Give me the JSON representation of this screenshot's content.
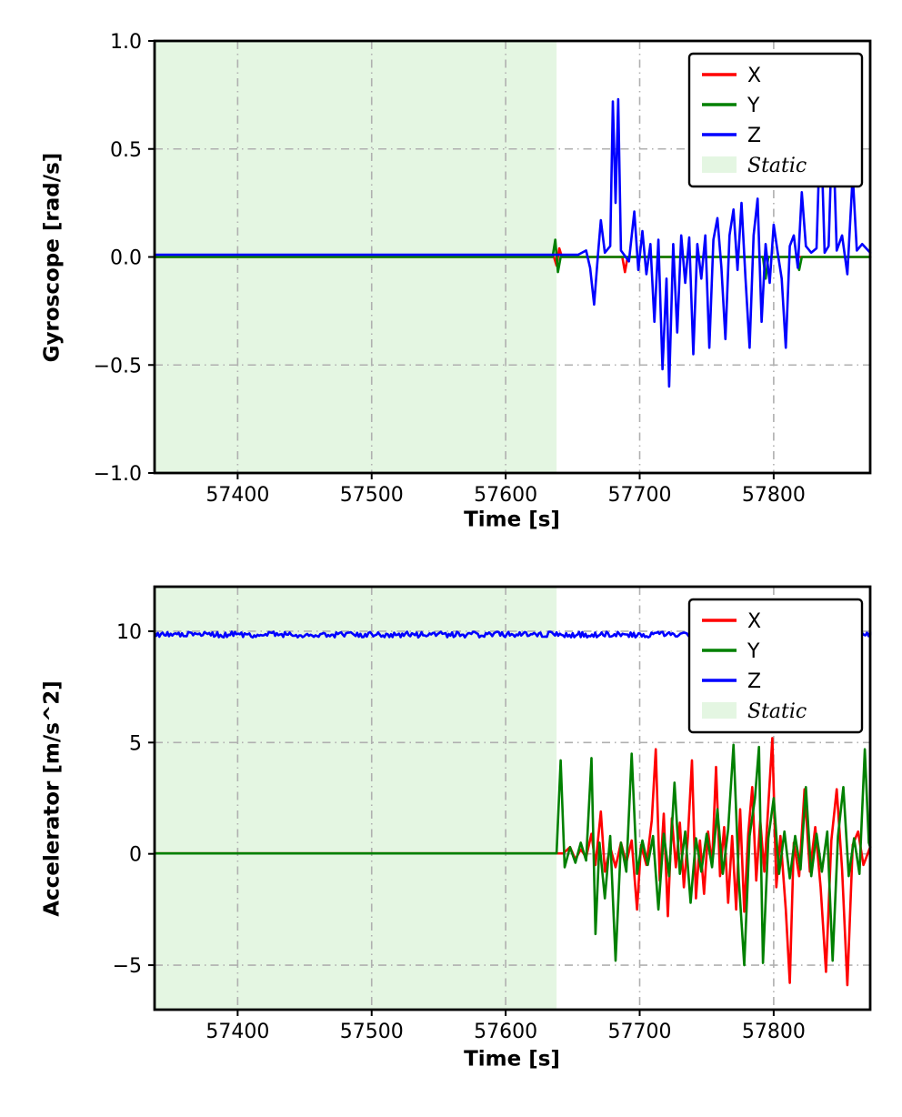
{
  "page": {
    "background": "#ffffff"
  },
  "colors": {
    "series_x": "#ff0000",
    "series_y": "#008000",
    "series_z": "#0000ff",
    "static_fill": "#e4f6e2",
    "grid": "#b0b0b0",
    "frame": "#000000"
  },
  "chart_data": [
    {
      "type": "line",
      "title": "",
      "xlabel": "Time [s]",
      "ylabel": "Gyroscope [rad/s]",
      "xlim": [
        57338,
        57872
      ],
      "ylim": [
        -1.0,
        1.0
      ],
      "xticks": [
        57400,
        57500,
        57600,
        57700,
        57800
      ],
      "xtick_labels": [
        "57400",
        "57500",
        "57600",
        "57700",
        "57800"
      ],
      "yticks": [
        -1.0,
        -0.5,
        0.0,
        0.5,
        1.0
      ],
      "ytick_labels": [
        "−1.0",
        "−0.5",
        "0.0",
        "0.5",
        "1.0"
      ],
      "grid": true,
      "grid_color": "#b0b0b0",
      "static_region": {
        "label": "Static",
        "x_start": 57338,
        "x_end": 57638,
        "color": "#e4f6e2"
      },
      "legend": {
        "position": "upper right",
        "entries": [
          {
            "label": "X",
            "color": "#ff0000",
            "type": "line",
            "italic": false
          },
          {
            "label": "Y",
            "color": "#008000",
            "type": "line",
            "italic": false
          },
          {
            "label": "Z",
            "color": "#0000ff",
            "type": "line",
            "italic": false
          },
          {
            "label": "Static",
            "color": "#e4f6e2",
            "type": "patch",
            "italic": true
          }
        ]
      },
      "series": [
        {
          "name": "X",
          "color": "#ff0000",
          "points": [
            [
              57338,
              0
            ],
            [
              57636,
              0
            ],
            [
              57638,
              -0.04
            ],
            [
              57640,
              0.04
            ],
            [
              57642,
              0
            ],
            [
              57687,
              0
            ],
            [
              57689,
              -0.07
            ],
            [
              57691,
              0
            ],
            [
              57872,
              0
            ]
          ]
        },
        {
          "name": "Y",
          "color": "#008000",
          "points": [
            [
              57338,
              0
            ],
            [
              57635,
              0
            ],
            [
              57637,
              0.08
            ],
            [
              57639,
              -0.07
            ],
            [
              57641,
              0
            ],
            [
              57792,
              0
            ],
            [
              57794,
              -0.1
            ],
            [
              57796,
              0
            ],
            [
              57817,
              0
            ],
            [
              57819,
              -0.06
            ],
            [
              57821,
              0
            ],
            [
              57872,
              0
            ]
          ]
        },
        {
          "name": "Z",
          "color": "#0000ff",
          "points": [
            [
              57338,
              0.01
            ],
            [
              57654,
              0.01
            ],
            [
              57660,
              0.03
            ],
            [
              57663,
              -0.05
            ],
            [
              57666,
              -0.22
            ],
            [
              57669,
              0.02
            ],
            [
              57671,
              0.17
            ],
            [
              57674,
              0.02
            ],
            [
              57678,
              0.05
            ],
            [
              57680,
              0.72
            ],
            [
              57682,
              0.25
            ],
            [
              57684,
              0.73
            ],
            [
              57686,
              0.03
            ],
            [
              57692,
              -0.02
            ],
            [
              57696,
              0.21
            ],
            [
              57699,
              -0.06
            ],
            [
              57702,
              0.12
            ],
            [
              57705,
              -0.08
            ],
            [
              57708,
              0.06
            ],
            [
              57711,
              -0.3
            ],
            [
              57714,
              0.08
            ],
            [
              57717,
              -0.52
            ],
            [
              57720,
              -0.1
            ],
            [
              57722,
              -0.6
            ],
            [
              57725,
              0.06
            ],
            [
              57728,
              -0.35
            ],
            [
              57731,
              0.1
            ],
            [
              57734,
              -0.12
            ],
            [
              57737,
              0.09
            ],
            [
              57740,
              -0.45
            ],
            [
              57743,
              0.06
            ],
            [
              57746,
              -0.1
            ],
            [
              57749,
              0.1
            ],
            [
              57752,
              -0.42
            ],
            [
              57755,
              0.08
            ],
            [
              57758,
              0.18
            ],
            [
              57761,
              -0.05
            ],
            [
              57764,
              -0.38
            ],
            [
              57767,
              0.1
            ],
            [
              57770,
              0.22
            ],
            [
              57773,
              -0.06
            ],
            [
              57776,
              0.25
            ],
            [
              57779,
              -0.1
            ],
            [
              57782,
              -0.42
            ],
            [
              57785,
              0.1
            ],
            [
              57788,
              0.27
            ],
            [
              57791,
              -0.3
            ],
            [
              57794,
              0.06
            ],
            [
              57797,
              -0.12
            ],
            [
              57800,
              0.15
            ],
            [
              57803,
              0.02
            ],
            [
              57806,
              -0.1
            ],
            [
              57809,
              -0.42
            ],
            [
              57812,
              0.05
            ],
            [
              57815,
              0.1
            ],
            [
              57818,
              -0.05
            ],
            [
              57821,
              0.3
            ],
            [
              57824,
              0.05
            ],
            [
              57828,
              0.02
            ],
            [
              57832,
              0.04
            ],
            [
              57835,
              0.65
            ],
            [
              57838,
              0.02
            ],
            [
              57841,
              0.05
            ],
            [
              57844,
              0.65
            ],
            [
              57847,
              0.03
            ],
            [
              57851,
              0.1
            ],
            [
              57855,
              -0.08
            ],
            [
              57859,
              0.38
            ],
            [
              57862,
              0.03
            ],
            [
              57866,
              0.06
            ],
            [
              57872,
              0.02
            ]
          ]
        }
      ]
    },
    {
      "type": "line",
      "title": "",
      "xlabel": "Time [s]",
      "ylabel": "Accelerator [m/s^2]",
      "xlim": [
        57338,
        57872
      ],
      "ylim": [
        -7.0,
        12.0
      ],
      "xticks": [
        57400,
        57500,
        57600,
        57700,
        57800
      ],
      "xtick_labels": [
        "57400",
        "57500",
        "57600",
        "57700",
        "57800"
      ],
      "yticks": [
        -5,
        0,
        5,
        10
      ],
      "ytick_labels": [
        "−5",
        "0",
        "5",
        "10"
      ],
      "grid": true,
      "grid_color": "#b0b0b0",
      "static_region": {
        "label": "Static",
        "x_start": 57338,
        "x_end": 57638,
        "color": "#e4f6e2"
      },
      "legend": {
        "position": "upper right",
        "entries": [
          {
            "label": "X",
            "color": "#ff0000",
            "type": "line",
            "italic": false
          },
          {
            "label": "Y",
            "color": "#008000",
            "type": "line",
            "italic": false
          },
          {
            "label": "Z",
            "color": "#0000ff",
            "type": "line",
            "italic": false
          },
          {
            "label": "Static",
            "color": "#e4f6e2",
            "type": "patch",
            "italic": true
          }
        ]
      },
      "series": [
        {
          "name": "X",
          "color": "#ff0000",
          "points": [
            [
              57338,
              0.02
            ],
            [
              57643,
              0.02
            ],
            [
              57648,
              0.3
            ],
            [
              57652,
              -0.25
            ],
            [
              57656,
              0.2
            ],
            [
              57660,
              -0.15
            ],
            [
              57664,
              0.9
            ],
            [
              57667,
              -0.5
            ],
            [
              57671,
              1.9
            ],
            [
              57674,
              -0.8
            ],
            [
              57678,
              0.3
            ],
            [
              57682,
              -0.6
            ],
            [
              57686,
              0.5
            ],
            [
              57690,
              -0.4
            ],
            [
              57694,
              0.6
            ],
            [
              57698,
              -2.5
            ],
            [
              57701,
              0.4
            ],
            [
              57705,
              -0.5
            ],
            [
              57709,
              1.5
            ],
            [
              57712,
              4.7
            ],
            [
              57715,
              -1.2
            ],
            [
              57718,
              1.8
            ],
            [
              57721,
              -2.8
            ],
            [
              57724,
              1.6
            ],
            [
              57727,
              -0.6
            ],
            [
              57730,
              1.4
            ],
            [
              57733,
              -1.5
            ],
            [
              57736,
              0.8
            ],
            [
              57739,
              4.2
            ],
            [
              57742,
              -2.0
            ],
            [
              57745,
              0.6
            ],
            [
              57748,
              -1.8
            ],
            [
              57751,
              1.0
            ],
            [
              57754,
              -0.5
            ],
            [
              57757,
              3.9
            ],
            [
              57760,
              -1.0
            ],
            [
              57763,
              1.2
            ],
            [
              57766,
              -2.2
            ],
            [
              57769,
              0.8
            ],
            [
              57772,
              -2.5
            ],
            [
              57775,
              2.0
            ],
            [
              57778,
              -2.6
            ],
            [
              57781,
              0.9
            ],
            [
              57784,
              3.0
            ],
            [
              57787,
              -1.2
            ],
            [
              57790,
              1.5
            ],
            [
              57793,
              -0.8
            ],
            [
              57796,
              2.2
            ],
            [
              57799,
              5.2
            ],
            [
              57802,
              -1.5
            ],
            [
              57805,
              0.8
            ],
            [
              57809,
              -2.5
            ],
            [
              57812,
              -5.8
            ],
            [
              57815,
              0.5
            ],
            [
              57819,
              -1.0
            ],
            [
              57823,
              2.9
            ],
            [
              57827,
              -0.8
            ],
            [
              57831,
              1.2
            ],
            [
              57835,
              -1.5
            ],
            [
              57839,
              -5.3
            ],
            [
              57843,
              0.6
            ],
            [
              57847,
              2.9
            ],
            [
              57851,
              -0.7
            ],
            [
              57855,
              -5.9
            ],
            [
              57859,
              0.4
            ],
            [
              57863,
              1.0
            ],
            [
              57867,
              -0.5
            ],
            [
              57872,
              0.3
            ]
          ]
        },
        {
          "name": "Y",
          "color": "#008000",
          "points": [
            [
              57338,
              0.02
            ],
            [
              57638,
              0.02
            ],
            [
              57641,
              4.2
            ],
            [
              57644,
              -0.6
            ],
            [
              57648,
              0.3
            ],
            [
              57652,
              -0.4
            ],
            [
              57656,
              0.5
            ],
            [
              57660,
              -0.3
            ],
            [
              57664,
              4.3
            ],
            [
              57667,
              -3.6
            ],
            [
              57670,
              0.5
            ],
            [
              57674,
              -2.0
            ],
            [
              57678,
              0.8
            ],
            [
              57682,
              -4.8
            ],
            [
              57686,
              0.5
            ],
            [
              57690,
              -0.8
            ],
            [
              57694,
              4.5
            ],
            [
              57698,
              -0.9
            ],
            [
              57702,
              0.6
            ],
            [
              57706,
              -0.5
            ],
            [
              57710,
              0.8
            ],
            [
              57714,
              -2.5
            ],
            [
              57718,
              0.9
            ],
            [
              57722,
              -1.0
            ],
            [
              57726,
              3.2
            ],
            [
              57730,
              -0.9
            ],
            [
              57734,
              1.0
            ],
            [
              57738,
              -2.2
            ],
            [
              57742,
              0.7
            ],
            [
              57746,
              -0.8
            ],
            [
              57750,
              0.9
            ],
            [
              57754,
              -0.6
            ],
            [
              57758,
              2.0
            ],
            [
              57762,
              -0.9
            ],
            [
              57766,
              1.1
            ],
            [
              57770,
              4.9
            ],
            [
              57774,
              -1.2
            ],
            [
              57778,
              -5.0
            ],
            [
              57782,
              0.8
            ],
            [
              57786,
              2.5
            ],
            [
              57789,
              4.8
            ],
            [
              57792,
              -4.9
            ],
            [
              57796,
              0.7
            ],
            [
              57800,
              2.5
            ],
            [
              57804,
              -0.9
            ],
            [
              57808,
              1.0
            ],
            [
              57812,
              -1.1
            ],
            [
              57816,
              0.8
            ],
            [
              57820,
              -0.7
            ],
            [
              57824,
              3.0
            ],
            [
              57828,
              -1.0
            ],
            [
              57832,
              0.9
            ],
            [
              57836,
              -0.8
            ],
            [
              57840,
              1.0
            ],
            [
              57844,
              -4.8
            ],
            [
              57848,
              0.8
            ],
            [
              57852,
              3.0
            ],
            [
              57856,
              -1.0
            ],
            [
              57860,
              0.7
            ],
            [
              57864,
              -0.9
            ],
            [
              57868,
              4.7
            ],
            [
              57871,
              0.5
            ],
            [
              57872,
              0.3
            ]
          ]
        },
        {
          "name": "Z",
          "color": "#0000ff",
          "baseline": 9.85,
          "noise_amplitude": 0.13,
          "step": 1.2
        }
      ]
    }
  ]
}
